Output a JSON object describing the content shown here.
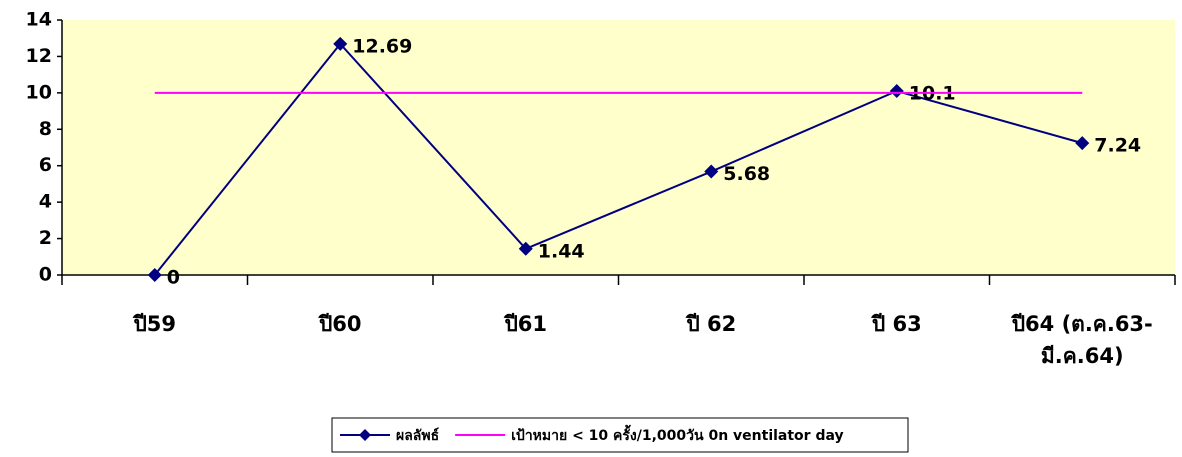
{
  "chart_data": {
    "type": "line",
    "categories": [
      "ปี59",
      "ปี60",
      "ปี61",
      "ปี 62",
      "ปี 63",
      "ปี64 (ต.ค.63-มี.ค.64)"
    ],
    "series": [
      {
        "name": "ผลลัพธ์",
        "color": "#000080",
        "values": [
          0,
          12.69,
          1.44,
          5.68,
          10.1,
          7.24
        ],
        "markers": true,
        "data_labels": true
      },
      {
        "name": "เป้าหมาย < 10 ครั้ง/1,000วัน 0n ventilator day",
        "color": "#ff00ff",
        "values": [
          10,
          10,
          10,
          10,
          10,
          10
        ],
        "markers": false,
        "data_labels": false
      }
    ],
    "ylim": [
      0,
      14
    ],
    "yticks": [
      0,
      2,
      4,
      6,
      8,
      10,
      12,
      14
    ],
    "grid": false,
    "plot_background": "#ffffcc",
    "legend": "bottom"
  }
}
